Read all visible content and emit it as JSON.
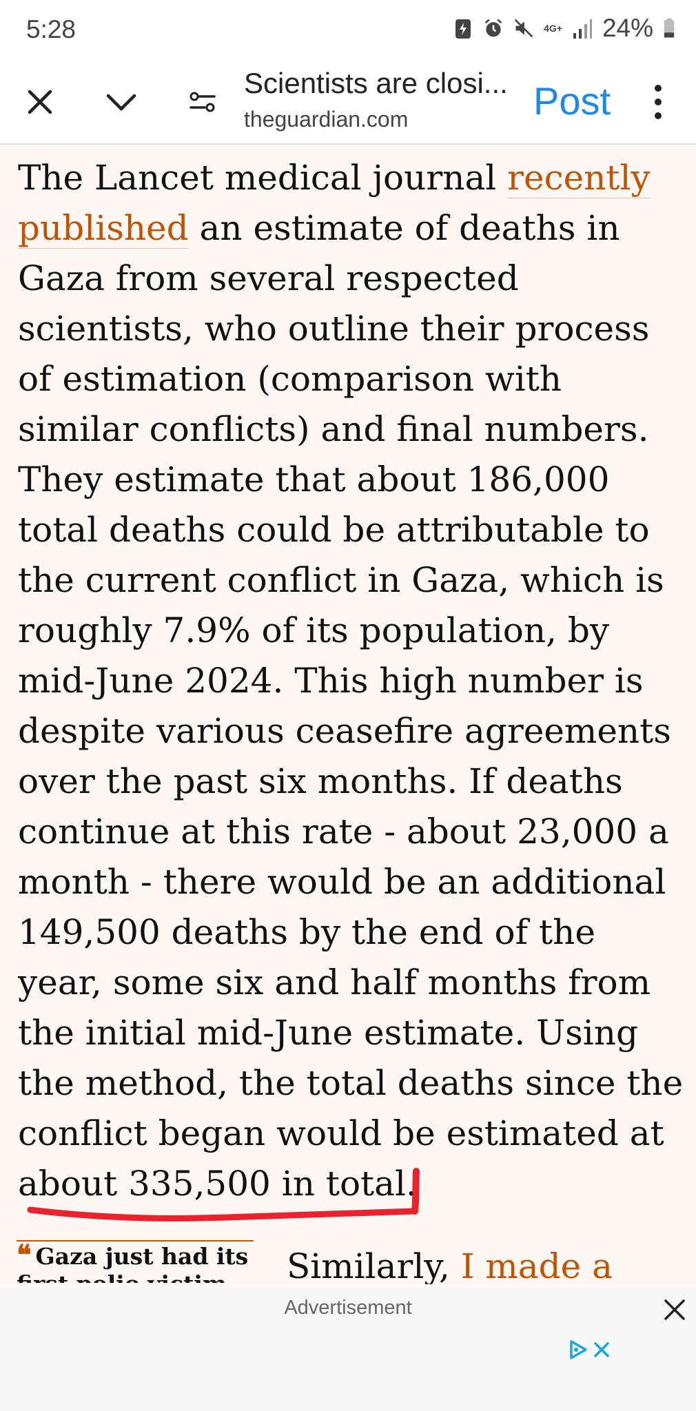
{
  "status_bar": {
    "time": "5:28",
    "network_label": "4G+",
    "battery_percent": "24%",
    "icons": [
      "battery-saver-icon",
      "alarm-icon",
      "mute-icon",
      "network-4g-icon",
      "signal-icon",
      "battery-icon"
    ]
  },
  "toolbar": {
    "title": "Scientists are closi...",
    "domain": "theguardian.com",
    "post_label": "Post",
    "icons": [
      "close-icon",
      "chevron-down-icon",
      "page-settings-icon",
      "more-vert-icon"
    ]
  },
  "article": {
    "p_link": "recently published",
    "p_pre": "The Lancet medical journal ",
    "p_post": " an estimate of deaths in Gaza from several respected scientists, who outline their process of estimation (comparison with similar conflicts) and final numbers. They estimate that about 186,000 total deaths could be attributable to the current conflict in Gaza, which is roughly 7.9% of its population, by mid-June 2024. This high number is despite various ceasefire agreements over the past six months. If deaths continue at this rate - about 23,000 a month - there would be an additional 149,500 deaths by the end of the year, some six and half months from the initial mid-June estimate. Using the method, the total deaths since the conflict began would be estimated at about 335,500 in total.",
    "pull_quote": "Gaza just had its first polio victim in",
    "next_text": "Similarly, ",
    "next_link": "I made a"
  },
  "colors": {
    "accent": "#c05402",
    "link_blue": "#1e88e5",
    "underline_red": "#e8232d",
    "background": "#fdf8f4"
  },
  "ad": {
    "label": "Advertisement"
  }
}
